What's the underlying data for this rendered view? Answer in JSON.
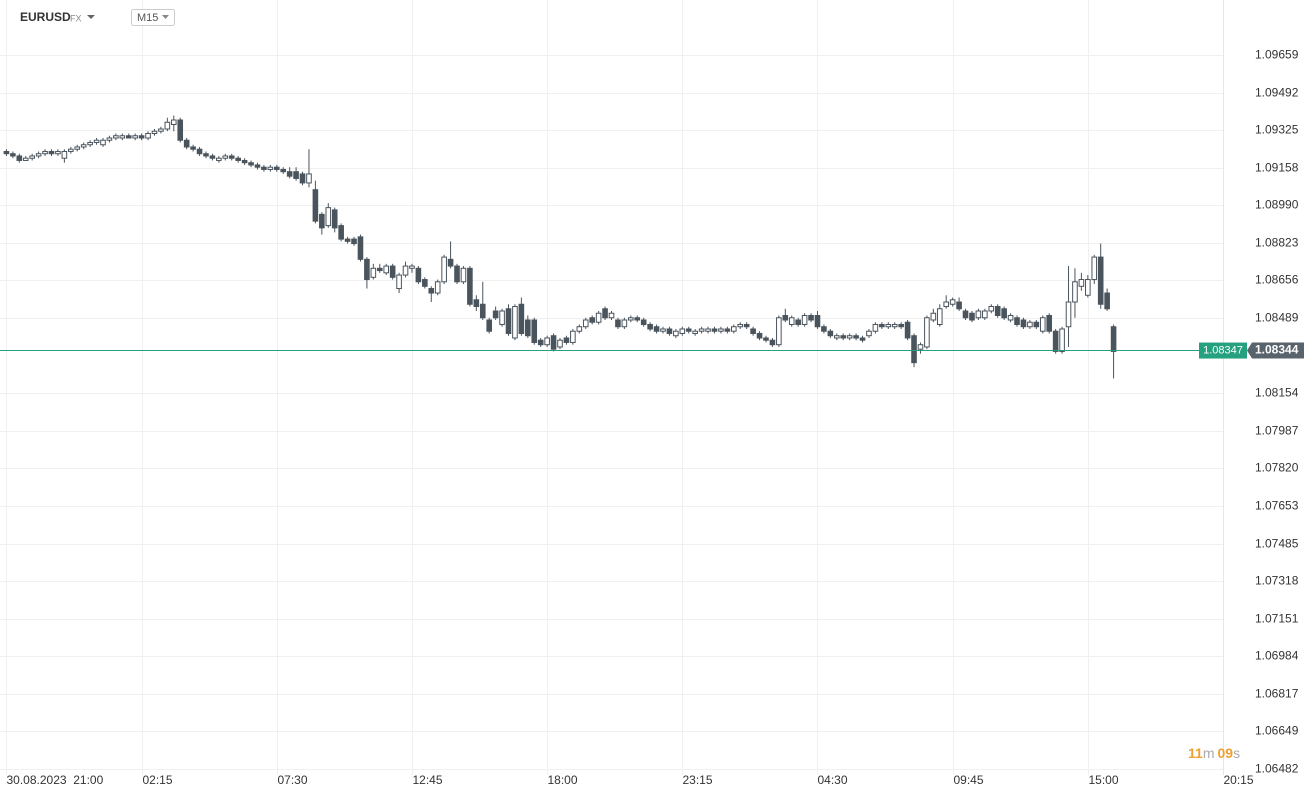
{
  "header": {
    "symbol": "EURUSD",
    "market": "FX",
    "interval": "M15"
  },
  "chart_data": {
    "type": "candlestick",
    "ohlc": [
      [
        1.0923,
        1.0924,
        1.0921,
        1.0922
      ],
      [
        1.0922,
        1.0923,
        1.092,
        1.0921
      ],
      [
        1.0921,
        1.0922,
        1.0918,
        1.0919
      ],
      [
        1.0919,
        1.0921,
        1.0919,
        1.092
      ],
      [
        1.092,
        1.0922,
        1.0919,
        1.0921
      ],
      [
        1.0921,
        1.0923,
        1.092,
        1.0922
      ],
      [
        1.0922,
        1.0924,
        1.0921,
        1.0923
      ],
      [
        1.0923,
        1.0924,
        1.0921,
        1.0922
      ],
      [
        1.0922,
        1.0924,
        1.0921,
        1.0923
      ],
      [
        1.092,
        1.0924,
        1.0918,
        1.0923
      ],
      [
        1.0923,
        1.0925,
        1.0922,
        1.0924
      ],
      [
        1.0924,
        1.0926,
        1.0923,
        1.0925
      ],
      [
        1.0925,
        1.0927,
        1.0924,
        1.0926
      ],
      [
        1.0926,
        1.0928,
        1.0925,
        1.0927
      ],
      [
        1.0927,
        1.0929,
        1.0926,
        1.0928
      ],
      [
        1.0926,
        1.0929,
        1.0925,
        1.0928
      ],
      [
        1.0928,
        1.093,
        1.0927,
        1.0929
      ],
      [
        1.0929,
        1.0931,
        1.0928,
        1.093
      ],
      [
        1.0929,
        1.0931,
        1.0928,
        1.093
      ],
      [
        1.093,
        1.0931,
        1.0929,
        1.0929
      ],
      [
        1.0929,
        1.0931,
        1.0928,
        1.093
      ],
      [
        1.093,
        1.0931,
        1.0928,
        1.0929
      ],
      [
        1.0929,
        1.0932,
        1.0928,
        1.0931
      ],
      [
        1.0931,
        1.0933,
        1.093,
        1.0932
      ],
      [
        1.0932,
        1.0934,
        1.0931,
        1.0933
      ],
      [
        1.0933,
        1.0938,
        1.0932,
        1.0936
      ],
      [
        1.0935,
        1.0939,
        1.0932,
        1.0937
      ],
      [
        1.0937,
        1.0938,
        1.0927,
        1.0928
      ],
      [
        1.0928,
        1.0929,
        1.0924,
        1.0925
      ],
      [
        1.0925,
        1.0926,
        1.0923,
        1.0924
      ],
      [
        1.0924,
        1.0925,
        1.0921,
        1.0922
      ],
      [
        1.0922,
        1.0923,
        1.092,
        1.0921
      ],
      [
        1.0921,
        1.0922,
        1.0919,
        1.092
      ],
      [
        1.0919,
        1.0921,
        1.0918,
        1.092
      ],
      [
        1.092,
        1.0922,
        1.0919,
        1.0921
      ],
      [
        1.0921,
        1.0922,
        1.0919,
        1.092
      ],
      [
        1.092,
        1.0921,
        1.0918,
        1.0919
      ],
      [
        1.0919,
        1.092,
        1.0917,
        1.0918
      ],
      [
        1.0918,
        1.0919,
        1.0916,
        1.0917
      ],
      [
        1.0917,
        1.0918,
        1.0915,
        1.0916
      ],
      [
        1.0916,
        1.0917,
        1.0914,
        1.0915
      ],
      [
        1.0915,
        1.0917,
        1.0914,
        1.0916
      ],
      [
        1.0916,
        1.0917,
        1.0914,
        1.0915
      ],
      [
        1.0915,
        1.0916,
        1.0913,
        1.0914
      ],
      [
        1.0914,
        1.0916,
        1.0911,
        1.0912
      ],
      [
        1.0914,
        1.0916,
        1.091,
        1.0911
      ],
      [
        1.0913,
        1.0914,
        1.0908,
        1.0909
      ],
      [
        1.0909,
        1.0924,
        1.0907,
        1.0913
      ],
      [
        1.0906,
        1.091,
        1.0891,
        1.0892
      ],
      [
        1.0895,
        1.0896,
        1.0886,
        1.0889
      ],
      [
        1.089,
        1.09,
        1.0889,
        1.0898
      ],
      [
        1.0897,
        1.0898,
        1.0887,
        1.0889
      ],
      [
        1.089,
        1.0891,
        1.0883,
        1.0884
      ],
      [
        1.0884,
        1.0885,
        1.0882,
        1.0883
      ],
      [
        1.0884,
        1.0885,
        1.0881,
        1.0882
      ],
      [
        1.0885,
        1.0886,
        1.0874,
        1.0875
      ],
      [
        1.0875,
        1.0876,
        1.0862,
        1.0866
      ],
      [
        1.0867,
        1.0873,
        1.0866,
        1.0871
      ],
      [
        1.0871,
        1.0873,
        1.0869,
        1.087
      ],
      [
        1.0869,
        1.0873,
        1.0868,
        1.0872
      ],
      [
        1.0872,
        1.0873,
        1.0866,
        1.0867
      ],
      [
        1.0862,
        1.0869,
        1.086,
        1.0868
      ],
      [
        1.0868,
        1.0874,
        1.0867,
        1.0872
      ],
      [
        1.0871,
        1.0873,
        1.0869,
        1.0872
      ],
      [
        1.0871,
        1.0872,
        1.0864,
        1.0865
      ],
      [
        1.0866,
        1.0867,
        1.0862,
        1.0863
      ],
      [
        1.0862,
        1.0863,
        1.0856,
        1.086
      ],
      [
        1.086,
        1.0866,
        1.0859,
        1.0865
      ],
      [
        1.0865,
        1.0877,
        1.0864,
        1.0876
      ],
      [
        1.0875,
        1.0883,
        1.0871,
        1.0872
      ],
      [
        1.0872,
        1.0873,
        1.0864,
        1.0865
      ],
      [
        1.0865,
        1.0872,
        1.0864,
        1.0871
      ],
      [
        1.0871,
        1.0872,
        1.0854,
        1.0855
      ],
      [
        1.0857,
        1.0859,
        1.0852,
        1.0854
      ],
      [
        1.0855,
        1.0865,
        1.0848,
        1.0849
      ],
      [
        1.0848,
        1.0849,
        1.0842,
        1.0843
      ],
      [
        1.0852,
        1.0854,
        1.0848,
        1.0849
      ],
      [
        1.0846,
        1.0853,
        1.0845,
        1.0852
      ],
      [
        1.0853,
        1.0855,
        1.0841,
        1.0842
      ],
      [
        1.084,
        1.0855,
        1.0839,
        1.0854
      ],
      [
        1.0855,
        1.0858,
        1.0841,
        1.0842
      ],
      [
        1.0848,
        1.085,
        1.084,
        1.0841
      ],
      [
        1.0848,
        1.0849,
        1.0837,
        1.0838
      ],
      [
        1.0839,
        1.084,
        1.0836,
        1.0837
      ],
      [
        1.0837,
        1.0841,
        1.0836,
        1.084
      ],
      [
        1.0841,
        1.0842,
        1.0834,
        1.0835
      ],
      [
        1.0836,
        1.084,
        1.0835,
        1.0839
      ],
      [
        1.084,
        1.0841,
        1.0837,
        1.0838
      ],
      [
        1.0838,
        1.0844,
        1.0837,
        1.0843
      ],
      [
        1.0843,
        1.0846,
        1.0842,
        1.0845
      ],
      [
        1.0845,
        1.0849,
        1.0844,
        1.0848
      ],
      [
        1.0849,
        1.085,
        1.0846,
        1.0847
      ],
      [
        1.0847,
        1.0852,
        1.0846,
        1.0851
      ],
      [
        1.0853,
        1.0854,
        1.0848,
        1.0849
      ],
      [
        1.0849,
        1.0852,
        1.0848,
        1.0851
      ],
      [
        1.0848,
        1.0849,
        1.0844,
        1.0845
      ],
      [
        1.0845,
        1.0849,
        1.0844,
        1.0848
      ],
      [
        1.0848,
        1.085,
        1.0847,
        1.0849
      ],
      [
        1.0849,
        1.085,
        1.0847,
        1.0848
      ],
      [
        1.0848,
        1.0849,
        1.0845,
        1.0846
      ],
      [
        1.0846,
        1.0847,
        1.0843,
        1.0844
      ],
      [
        1.0845,
        1.0846,
        1.0842,
        1.0843
      ],
      [
        1.0843,
        1.0845,
        1.0842,
        1.0844
      ],
      [
        1.0844,
        1.0845,
        1.0841,
        1.0842
      ],
      [
        1.0841,
        1.0844,
        1.084,
        1.0843
      ],
      [
        1.0842,
        1.0845,
        1.0841,
        1.0844
      ],
      [
        1.0844,
        1.0845,
        1.0842,
        1.0843
      ],
      [
        1.0842,
        1.0844,
        1.0841,
        1.0843
      ],
      [
        1.0843,
        1.0845,
        1.0842,
        1.0844
      ],
      [
        1.0843,
        1.0845,
        1.0842,
        1.0844
      ],
      [
        1.0844,
        1.0845,
        1.0842,
        1.0843
      ],
      [
        1.0843,
        1.0845,
        1.0842,
        1.0844
      ],
      [
        1.0844,
        1.0845,
        1.0842,
        1.0843
      ],
      [
        1.0843,
        1.0846,
        1.0842,
        1.0845
      ],
      [
        1.0845,
        1.0847,
        1.0844,
        1.0846
      ],
      [
        1.0846,
        1.0847,
        1.0844,
        1.0845
      ],
      [
        1.0844,
        1.0845,
        1.0841,
        1.0842
      ],
      [
        1.0842,
        1.0843,
        1.0839,
        1.084
      ],
      [
        1.084,
        1.0841,
        1.0838,
        1.0839
      ],
      [
        1.0839,
        1.084,
        1.0836,
        1.0837
      ],
      [
        1.0837,
        1.085,
        1.0836,
        1.0849
      ],
      [
        1.085,
        1.0853,
        1.0847,
        1.0848
      ],
      [
        1.0846,
        1.085,
        1.0845,
        1.0849
      ],
      [
        1.0848,
        1.0849,
        1.0845,
        1.0846
      ],
      [
        1.0846,
        1.0851,
        1.0845,
        1.085
      ],
      [
        1.085,
        1.0851,
        1.0847,
        1.0848
      ],
      [
        1.085,
        1.0852,
        1.0844,
        1.0845
      ],
      [
        1.0845,
        1.0846,
        1.0842,
        1.0843
      ],
      [
        1.0843,
        1.0844,
        1.084,
        1.0841
      ],
      [
        1.084,
        1.0842,
        1.0839,
        1.0841
      ],
      [
        1.0841,
        1.0842,
        1.0839,
        1.084
      ],
      [
        1.084,
        1.0842,
        1.0839,
        1.0841
      ],
      [
        1.0841,
        1.0842,
        1.0839,
        1.084
      ],
      [
        1.084,
        1.0841,
        1.0838,
        1.0839
      ],
      [
        1.0841,
        1.0844,
        1.084,
        1.0843
      ],
      [
        1.0843,
        1.0847,
        1.0842,
        1.0846
      ],
      [
        1.0846,
        1.0847,
        1.0844,
        1.0845
      ],
      [
        1.0845,
        1.0847,
        1.0844,
        1.0846
      ],
      [
        1.0845,
        1.0847,
        1.0844,
        1.0846
      ],
      [
        1.0846,
        1.0847,
        1.0844,
        1.0845
      ],
      [
        1.0847,
        1.0848,
        1.0839,
        1.084
      ],
      [
        1.0841,
        1.0842,
        1.0827,
        1.0829
      ],
      [
        1.0835,
        1.0838,
        1.0833,
        1.0837
      ],
      [
        1.0836,
        1.085,
        1.0835,
        1.0849
      ],
      [
        1.0848,
        1.0853,
        1.0847,
        1.0851
      ],
      [
        1.0846,
        1.0855,
        1.0845,
        1.0853
      ],
      [
        1.0854,
        1.0859,
        1.0853,
        1.0856
      ],
      [
        1.0855,
        1.0858,
        1.0854,
        1.0857
      ],
      [
        1.0856,
        1.0858,
        1.0852,
        1.0853
      ],
      [
        1.0852,
        1.0853,
        1.0848,
        1.0849
      ],
      [
        1.0851,
        1.0852,
        1.0847,
        1.0848
      ],
      [
        1.0849,
        1.0853,
        1.0848,
        1.0852
      ],
      [
        1.0849,
        1.0853,
        1.0848,
        1.0852
      ],
      [
        1.0852,
        1.0855,
        1.0851,
        1.0854
      ],
      [
        1.0854,
        1.0855,
        1.0849,
        1.085
      ],
      [
        1.0853,
        1.0854,
        1.0848,
        1.0849
      ],
      [
        1.0848,
        1.0851,
        1.0847,
        1.085
      ],
      [
        1.0849,
        1.085,
        1.0845,
        1.0846
      ],
      [
        1.0848,
        1.0849,
        1.0844,
        1.0845
      ],
      [
        1.0845,
        1.0848,
        1.0844,
        1.0847
      ],
      [
        1.0847,
        1.0848,
        1.0844,
        1.0845
      ],
      [
        1.0843,
        1.085,
        1.0842,
        1.0849
      ],
      [
        1.085,
        1.0851,
        1.0842,
        1.0843
      ],
      [
        1.0843,
        1.0844,
        1.0833,
        1.0834
      ],
      [
        1.0834,
        1.0845,
        1.0833,
        1.0844
      ],
      [
        1.0845,
        1.0872,
        1.0836,
        1.0856
      ],
      [
        1.0856,
        1.0871,
        1.0849,
        1.0865
      ],
      [
        1.0863,
        1.0869,
        1.0861,
        1.0866
      ],
      [
        1.0859,
        1.0868,
        1.0858,
        1.0866
      ],
      [
        1.0866,
        1.0877,
        1.0864,
        1.0876
      ],
      [
        1.0876,
        1.0882,
        1.0853,
        1.0855
      ],
      [
        1.086,
        1.0862,
        1.0852,
        1.0853
      ],
      [
        1.0845,
        1.0846,
        1.0822,
        1.0834
      ]
    ],
    "xlim": [
      -1,
      189
    ],
    "xticks": [
      {
        "value": 0,
        "label": "30.08.2023  21:00"
      },
      {
        "value": 21,
        "label": "02:15"
      },
      {
        "value": 42,
        "label": "07:30"
      },
      {
        "value": 63,
        "label": "12:45"
      },
      {
        "value": 84,
        "label": "18:00"
      },
      {
        "value": 105,
        "label": "23:15"
      },
      {
        "value": 126,
        "label": "04:30"
      },
      {
        "value": 147,
        "label": "09:45"
      },
      {
        "value": 168,
        "label": "15:00"
      },
      {
        "value": 189,
        "label": "20:15"
      }
    ],
    "ylim": [
      1.06455,
      1.09824
    ],
    "yticks": [
      1.09659,
      1.09492,
      1.09325,
      1.09158,
      {
        "value": 1.0899,
        "label": "1.08990"
      },
      1.08823,
      1.08656,
      1.08489,
      1.08154,
      1.07987,
      {
        "value": 1.0782,
        "label": "1.07820"
      },
      1.07653,
      1.07485,
      1.07318,
      1.07151,
      1.06984,
      1.06817,
      1.06649,
      1.06482
    ],
    "grid": true,
    "bull_color": "#ffffff",
    "bear_color": "#4a545d",
    "last_price": 1.08344,
    "ask_price": 1.08347,
    "price_line_color": "#26a17f"
  },
  "countdown": {
    "minutes": "11",
    "m": "m",
    "seconds": "09",
    "s": "s"
  }
}
